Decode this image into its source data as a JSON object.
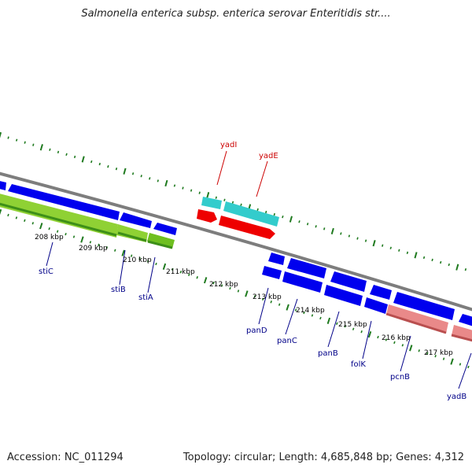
{
  "title": "Salmonella enterica subsp. enterica serovar Enteritidis str....",
  "footer": {
    "accession": "Accession: NC_011294",
    "summary": "Topology: circular; Length: 4,685,848 bp; Genes: 4,312"
  },
  "colors": {
    "backbone": "#8a8a8a",
    "tick": "#1f7a1f",
    "gene_forward": "#0000ee",
    "gene_selected_green": "#7ac91e",
    "gene_teal": "#33cccc",
    "gene_red": "#ee0000",
    "gene_pink": "#e98989",
    "label_forward": "#000088",
    "label_reverse": "#cc0000"
  },
  "scale_labels": [
    "208 kbp",
    "209 kbp",
    "210 kbp",
    "211 kbp",
    "212 kbp",
    "213 kbp",
    "214 kbp",
    "215 kbp",
    "216 kbp",
    "217 kbp"
  ],
  "genes_below": [
    "stiC",
    "stiB",
    "stiA",
    "panD",
    "panC",
    "panB",
    "folK",
    "pcnB",
    "yadB"
  ],
  "genes_above": [
    "yadI",
    "yadE"
  ]
}
